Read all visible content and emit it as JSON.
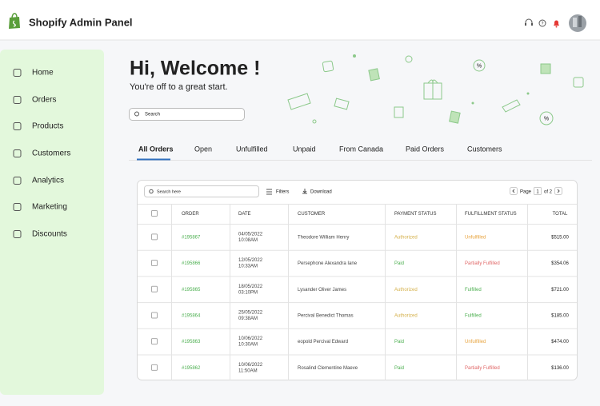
{
  "header": {
    "title": "Shopify Admin Panel"
  },
  "sidebar": {
    "items": [
      "Home",
      "Orders",
      "Products",
      "Customers",
      "Analytics",
      "Marketing",
      "Discounts"
    ]
  },
  "welcome": {
    "title": "Hi, Welcome !",
    "subtitle": "You're off to a great start.",
    "search_placeholder": "Search"
  },
  "tabs": [
    "All Orders",
    "Open",
    "Unfulfilled",
    "Unpaid",
    "From Canada",
    "Paid Orders",
    "Customers"
  ],
  "toolbar": {
    "search_placeholder": "Search here",
    "filters": "Filters",
    "download": "Download",
    "page_label": "Page",
    "page": "1",
    "page_total": "of 2"
  },
  "table": {
    "columns": [
      "ORDER",
      "DATE",
      "CUSTOMER",
      "PAYMENT STATUS",
      "FULFILLMENT STATUS",
      "TOTAL"
    ],
    "rows": [
      [
        "#195867",
        "04/05/2022",
        "10:08AM",
        "Theodore William Henry",
        "Authorized",
        "Unfulfilled",
        "$515.00"
      ],
      [
        "#195866",
        "12/05/2022",
        "10:33AM",
        "Persephone Alexandra Iane",
        "Paid",
        "Partially Fulfilled",
        "$354.06"
      ],
      [
        "#195865",
        "18/05/2022",
        "03:10PM",
        "Lysander Oliver James",
        "Authorized",
        "Fulfilled",
        "$721.00"
      ],
      [
        "#195864",
        "25/05/2022",
        "09:38AM",
        "Percival Benedict Thomas",
        "Authorized",
        "Fulfilled",
        "$185.00"
      ],
      [
        "#195863",
        "10/06/2022",
        "10:30AM",
        "eopold Percival Edward",
        "Paid",
        "Unfulfilled",
        "$474.00"
      ],
      [
        "#195862",
        "10/06/2022",
        "11:50AM",
        "Rosalind Clementine Maeve",
        "Paid",
        "Partially Fulfilled",
        "$136.00"
      ]
    ]
  }
}
